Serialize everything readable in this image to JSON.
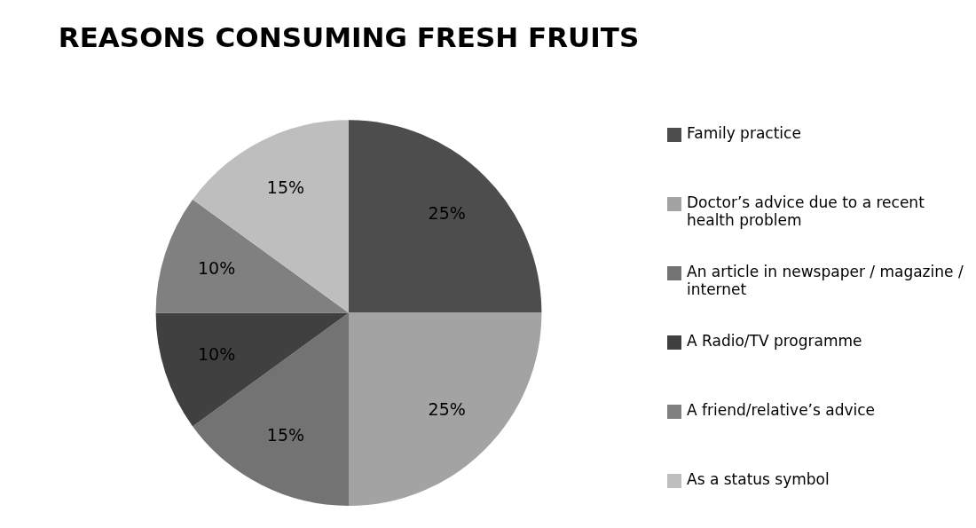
{
  "chart_data": {
    "type": "pie",
    "title": "REASONS CONSUMING FRESH FRUITS",
    "categories": [
      "Family practice",
      "Doctor’s advice due to a recent health problem",
      "An article in newspaper / magazine / internet",
      "A Radio/TV  programme",
      "A friend/relative’s advice",
      "As a status symbol"
    ],
    "values": [
      25,
      25,
      15,
      10,
      10,
      15
    ],
    "colors": [
      "#4d4d4d",
      "#a3a3a3",
      "#737373",
      "#404040",
      "#808080",
      "#bebebe"
    ],
    "value_labels": [
      "25%",
      "25%",
      "15%",
      "10%",
      "10%",
      "15%"
    ],
    "legend": "right"
  }
}
